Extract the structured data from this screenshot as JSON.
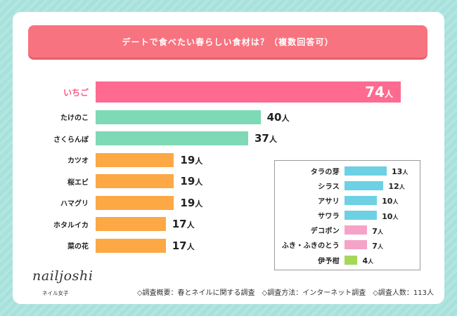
{
  "title": "デートで食べたい春らしい食材は？（複数回答可）",
  "theme": {
    "background": "#a7e1dc",
    "title_bar": "#f7737f",
    "highlight_text": "#ff5c8a"
  },
  "chart_data": [
    {
      "type": "bar",
      "categories": [
        "いちご",
        "たけのこ",
        "さくらんぼ",
        "カツオ",
        "桜エビ",
        "ハマグリ",
        "ホタルイカ",
        "菜の花"
      ],
      "values": [
        74,
        40,
        37,
        19,
        19,
        19,
        17,
        17
      ],
      "unit": "人",
      "colors": [
        "#ff6a90",
        "#7ed9b6",
        "#7ed9b6",
        "#fca845",
        "#fca845",
        "#fca845",
        "#fca845",
        "#fca845"
      ],
      "highlight_index": 0,
      "grid": false
    },
    {
      "type": "bar",
      "categories": [
        "タラの芽",
        "シラス",
        "アサリ",
        "サワラ",
        "デコポン",
        "ふき・ふきのとう",
        "伊予柑"
      ],
      "values": [
        13,
        12,
        10,
        10,
        7,
        7,
        4
      ],
      "unit": "人",
      "colors": [
        "#6dd0e3",
        "#6dd0e3",
        "#6dd0e3",
        "#6dd0e3",
        "#f5a3c9",
        "#f5a3c9",
        "#a5d75b"
      ],
      "grid": false
    }
  ],
  "footer": {
    "survey_summary": "◇調査概要：春とネイルに関する調査",
    "survey_method": "◇調査方法：インターネット調査",
    "survey_count": "◇調査人数：113人"
  },
  "logo": {
    "wordmark": "nailjoshi",
    "tagline": "ネイル女子"
  }
}
